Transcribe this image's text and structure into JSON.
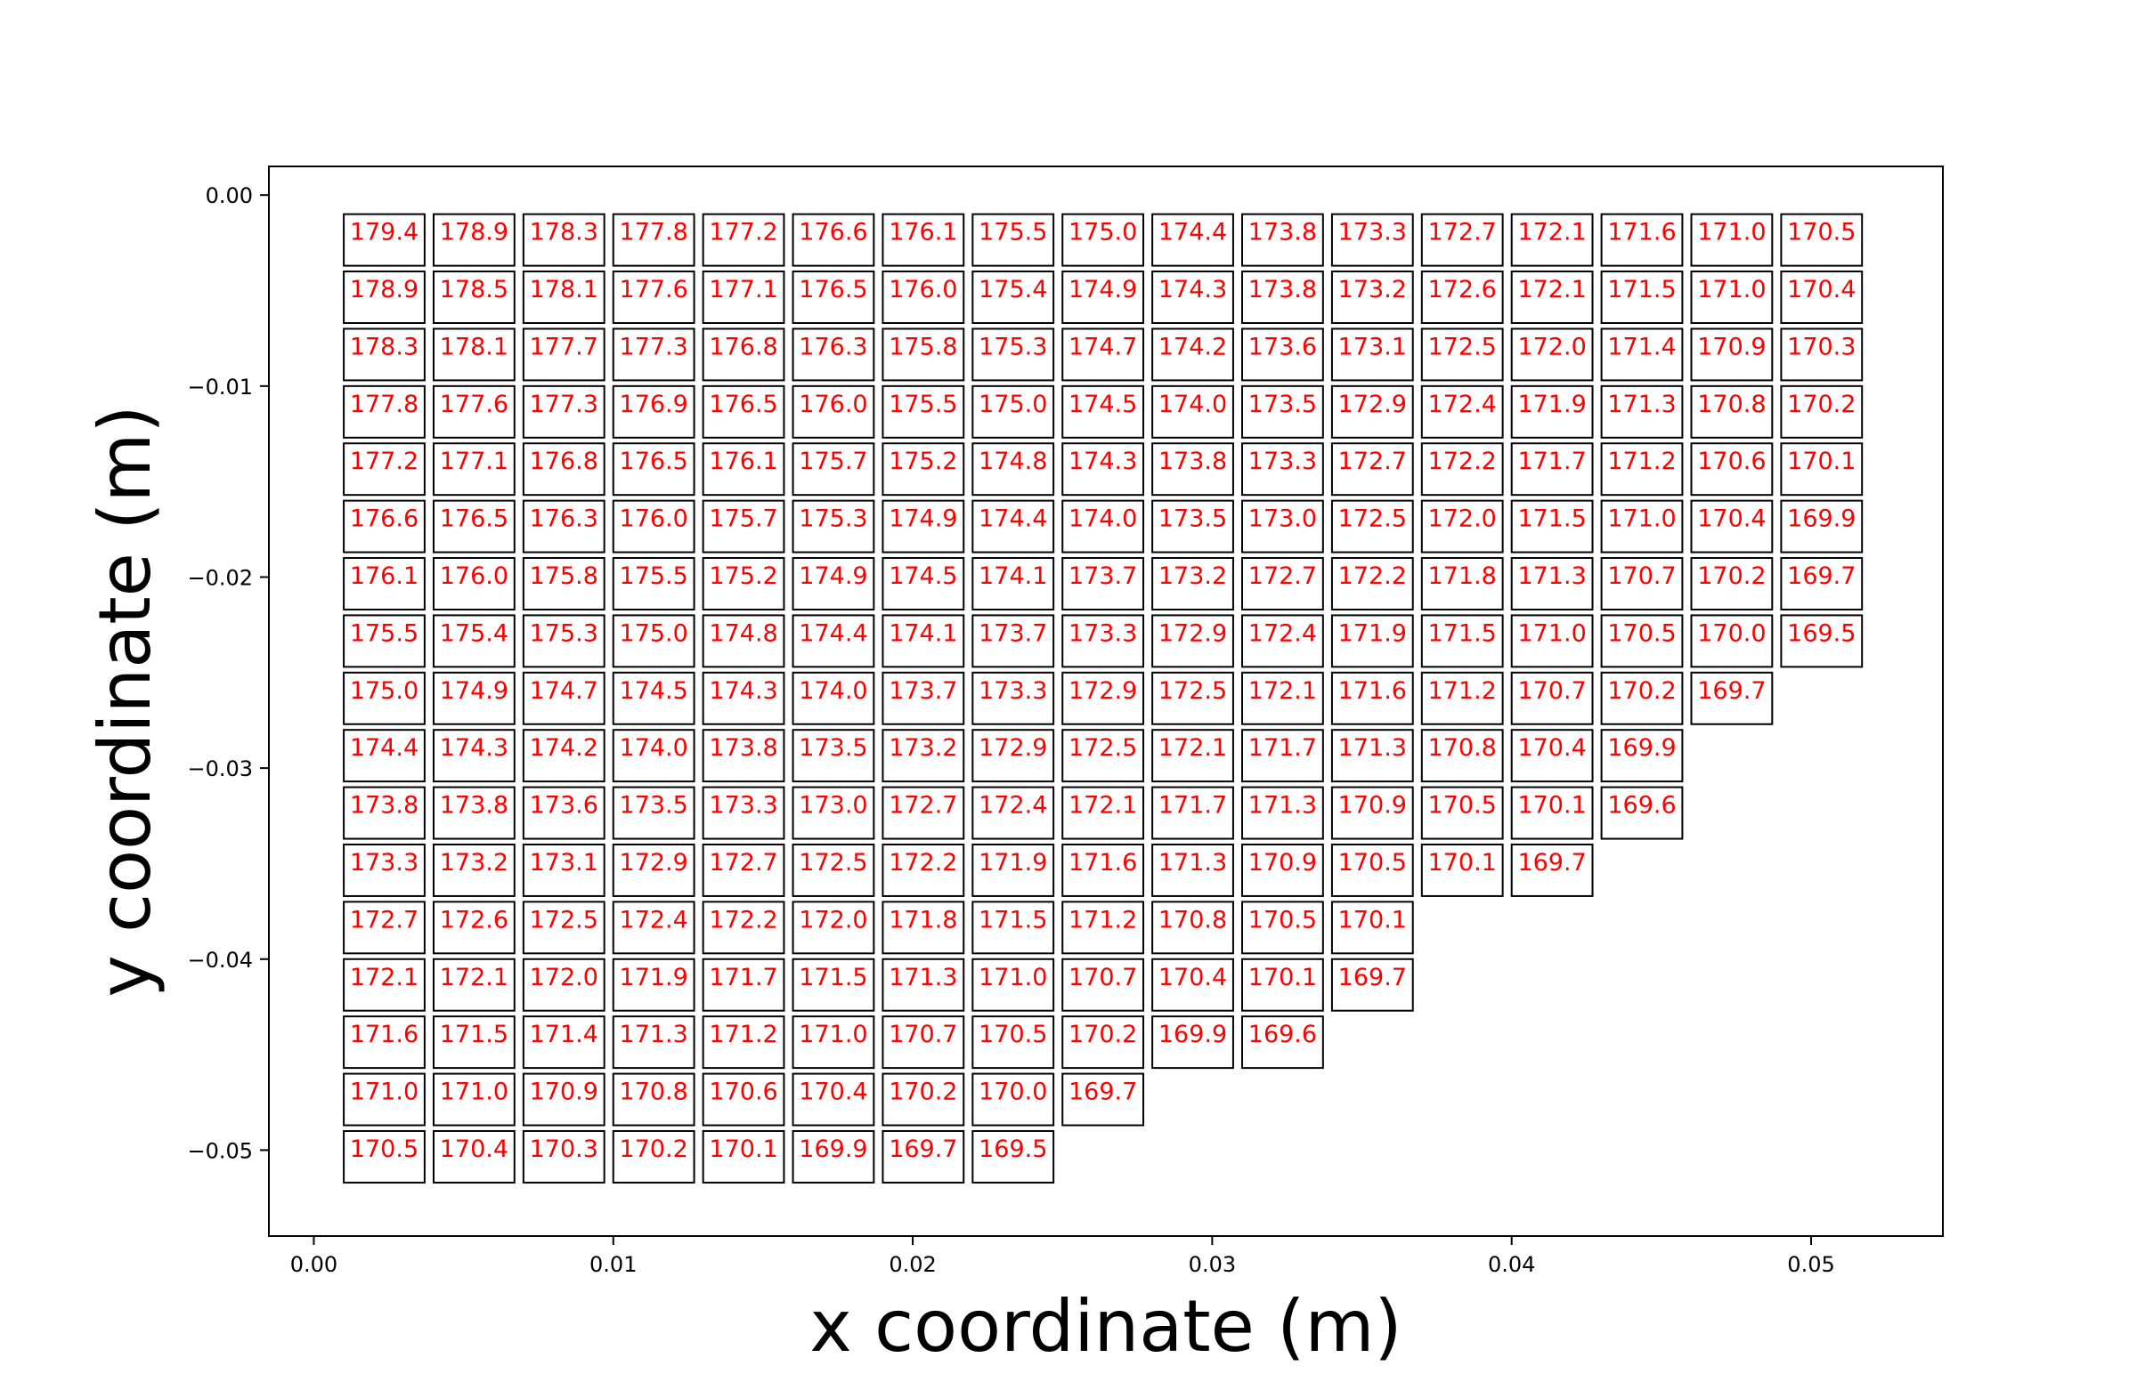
{
  "chart_data": {
    "type": "heatmap",
    "title": "",
    "xlabel": "x coordinate (m)",
    "ylabel": "y coordinate (m)",
    "xlim": [
      -0.0015,
      0.0544
    ],
    "ylim": [
      -0.0545,
      0.0015
    ],
    "x_ticks": [
      0.0,
      0.01,
      0.02,
      0.03,
      0.04,
      0.05
    ],
    "x_tick_labels": [
      "0.00",
      "0.01",
      "0.02",
      "0.03",
      "0.04",
      "0.05"
    ],
    "y_ticks": [
      0.0,
      -0.01,
      -0.02,
      -0.03,
      -0.04,
      -0.05
    ],
    "y_tick_labels": [
      "0.00",
      "−0.01",
      "−0.02",
      "−0.03",
      "−0.04",
      "−0.05"
    ],
    "grid": false,
    "legend": "none",
    "label_color": "#ff0000",
    "cell_edge_color": "#000000",
    "cell_x_start": 0.001,
    "cell_x_step": 0.003,
    "cell_width": 0.0027,
    "cell_y_start": -0.001,
    "cell_y_step": -0.003,
    "cell_height": -0.0027,
    "rows": [
      [
        "179.4",
        "178.9",
        "178.3",
        "177.8",
        "177.2",
        "176.6",
        "176.1",
        "175.5",
        "175.0",
        "174.4",
        "173.8",
        "173.3",
        "172.7",
        "172.1",
        "171.6",
        "171.0",
        "170.5"
      ],
      [
        "178.9",
        "178.5",
        "178.1",
        "177.6",
        "177.1",
        "176.5",
        "176.0",
        "175.4",
        "174.9",
        "174.3",
        "173.8",
        "173.2",
        "172.6",
        "172.1",
        "171.5",
        "171.0",
        "170.4"
      ],
      [
        "178.3",
        "178.1",
        "177.7",
        "177.3",
        "176.8",
        "176.3",
        "175.8",
        "175.3",
        "174.7",
        "174.2",
        "173.6",
        "173.1",
        "172.5",
        "172.0",
        "171.4",
        "170.9",
        "170.3"
      ],
      [
        "177.8",
        "177.6",
        "177.3",
        "176.9",
        "176.5",
        "176.0",
        "175.5",
        "175.0",
        "174.5",
        "174.0",
        "173.5",
        "172.9",
        "172.4",
        "171.9",
        "171.3",
        "170.8",
        "170.2"
      ],
      [
        "177.2",
        "177.1",
        "176.8",
        "176.5",
        "176.1",
        "175.7",
        "175.2",
        "174.8",
        "174.3",
        "173.8",
        "173.3",
        "172.7",
        "172.2",
        "171.7",
        "171.2",
        "170.6",
        "170.1"
      ],
      [
        "176.6",
        "176.5",
        "176.3",
        "176.0",
        "175.7",
        "175.3",
        "174.9",
        "174.4",
        "174.0",
        "173.5",
        "173.0",
        "172.5",
        "172.0",
        "171.5",
        "171.0",
        "170.4",
        "169.9"
      ],
      [
        "176.1",
        "176.0",
        "175.8",
        "175.5",
        "175.2",
        "174.9",
        "174.5",
        "174.1",
        "173.7",
        "173.2",
        "172.7",
        "172.2",
        "171.8",
        "171.3",
        "170.7",
        "170.2",
        "169.7"
      ],
      [
        "175.5",
        "175.4",
        "175.3",
        "175.0",
        "174.8",
        "174.4",
        "174.1",
        "173.7",
        "173.3",
        "172.9",
        "172.4",
        "171.9",
        "171.5",
        "171.0",
        "170.5",
        "170.0",
        "169.5"
      ],
      [
        "175.0",
        "174.9",
        "174.7",
        "174.5",
        "174.3",
        "174.0",
        "173.7",
        "173.3",
        "172.9",
        "172.5",
        "172.1",
        "171.6",
        "171.2",
        "170.7",
        "170.2",
        "169.7"
      ],
      [
        "174.4",
        "174.3",
        "174.2",
        "174.0",
        "173.8",
        "173.5",
        "173.2",
        "172.9",
        "172.5",
        "172.1",
        "171.7",
        "171.3",
        "170.8",
        "170.4",
        "169.9"
      ],
      [
        "173.8",
        "173.8",
        "173.6",
        "173.5",
        "173.3",
        "173.0",
        "172.7",
        "172.4",
        "172.1",
        "171.7",
        "171.3",
        "170.9",
        "170.5",
        "170.1",
        "169.6"
      ],
      [
        "173.3",
        "173.2",
        "173.1",
        "172.9",
        "172.7",
        "172.5",
        "172.2",
        "171.9",
        "171.6",
        "171.3",
        "170.9",
        "170.5",
        "170.1",
        "169.7"
      ],
      [
        "172.7",
        "172.6",
        "172.5",
        "172.4",
        "172.2",
        "172.0",
        "171.8",
        "171.5",
        "171.2",
        "170.8",
        "170.5",
        "170.1"
      ],
      [
        "172.1",
        "172.1",
        "172.0",
        "171.9",
        "171.7",
        "171.5",
        "171.3",
        "171.0",
        "170.7",
        "170.4",
        "170.1",
        "169.7"
      ],
      [
        "171.6",
        "171.5",
        "171.4",
        "171.3",
        "171.2",
        "171.0",
        "170.7",
        "170.5",
        "170.2",
        "169.9",
        "169.6"
      ],
      [
        "171.0",
        "171.0",
        "170.9",
        "170.8",
        "170.6",
        "170.4",
        "170.2",
        "170.0",
        "169.7"
      ],
      [
        "170.5",
        "170.4",
        "170.3",
        "170.2",
        "170.1",
        "169.9",
        "169.7",
        "169.5"
      ]
    ]
  }
}
